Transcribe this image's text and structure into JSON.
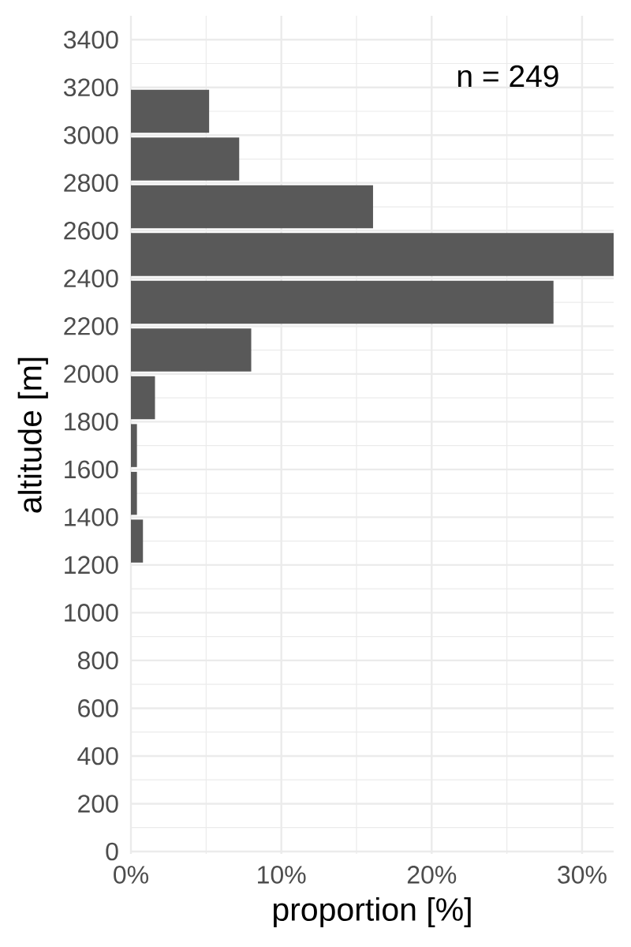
{
  "chart_data": {
    "type": "histogram",
    "orientation": "horizontal",
    "bins": [
      1200,
      1400,
      1600,
      1800,
      2000,
      2200,
      2400,
      2600,
      2800,
      3000,
      3200
    ],
    "values": [
      0.8,
      0.4,
      0.4,
      1.6,
      8.0,
      28.1,
      32.1,
      16.1,
      7.2,
      5.2
    ],
    "color": "#595959",
    "xlabel": "proportion [%]",
    "ylabel": "altitude [m]",
    "xlim": [
      0,
      32.1
    ],
    "xticks": [
      {
        "value": 0,
        "label": "0%"
      },
      {
        "value": 10,
        "label": "10%"
      },
      {
        "value": 20,
        "label": "20%"
      },
      {
        "value": 30,
        "label": "30%"
      }
    ],
    "ylim": [
      -10,
      3500
    ],
    "yticks": [
      0,
      200,
      400,
      600,
      800,
      1000,
      1200,
      1400,
      1600,
      1800,
      2000,
      2200,
      2400,
      2600,
      2800,
      3000,
      3200,
      3400
    ],
    "grid": true,
    "annotations": [
      "n = 249"
    ]
  }
}
